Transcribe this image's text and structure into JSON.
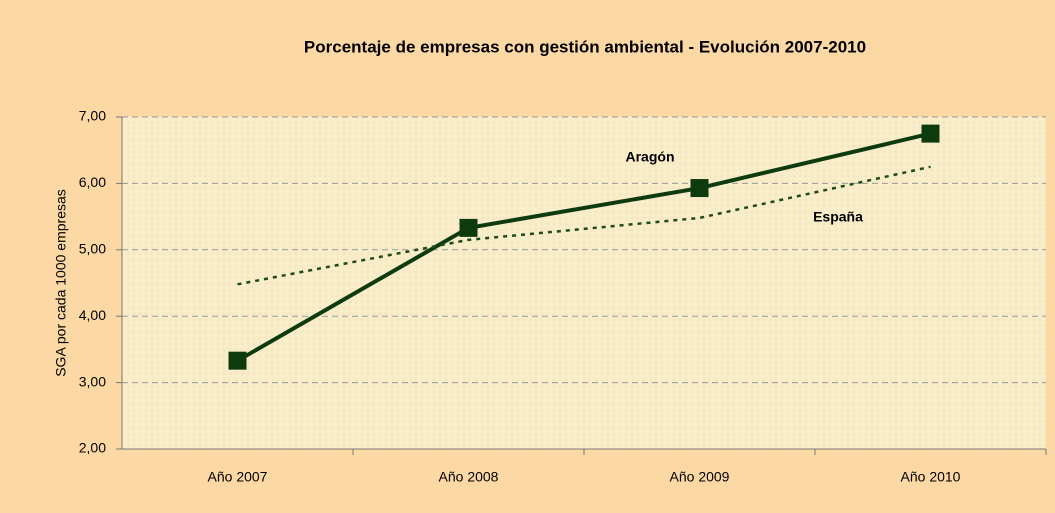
{
  "chart_data": {
    "type": "line",
    "title": "Porcentaje de empresas con gestión ambiental -  Evolución 2007-2010",
    "y_label": "SGA por cada 1000 empresas",
    "categories": [
      "Año 2007",
      "Año 2008",
      "Año 2009",
      "Año 2010"
    ],
    "series": [
      {
        "name": "Aragón",
        "color": "#0e3b0e",
        "style": "solid",
        "marker": "square",
        "values": [
          3.33,
          5.33,
          5.93,
          6.75
        ]
      },
      {
        "name": "España",
        "color": "#1e4a1e",
        "style": "dotted",
        "values": [
          4.48,
          5.15,
          5.48,
          6.25
        ]
      }
    ],
    "ylim": [
      2,
      7
    ],
    "yticks": [
      {
        "value": 2,
        "label": "2,00"
      },
      {
        "value": 3,
        "label": "3,00"
      },
      {
        "value": 4,
        "label": "4,00"
      },
      {
        "value": 5,
        "label": "5,00"
      },
      {
        "value": 6,
        "label": "6,00"
      },
      {
        "value": 7,
        "label": "7,00"
      }
    ],
    "grid": true
  }
}
